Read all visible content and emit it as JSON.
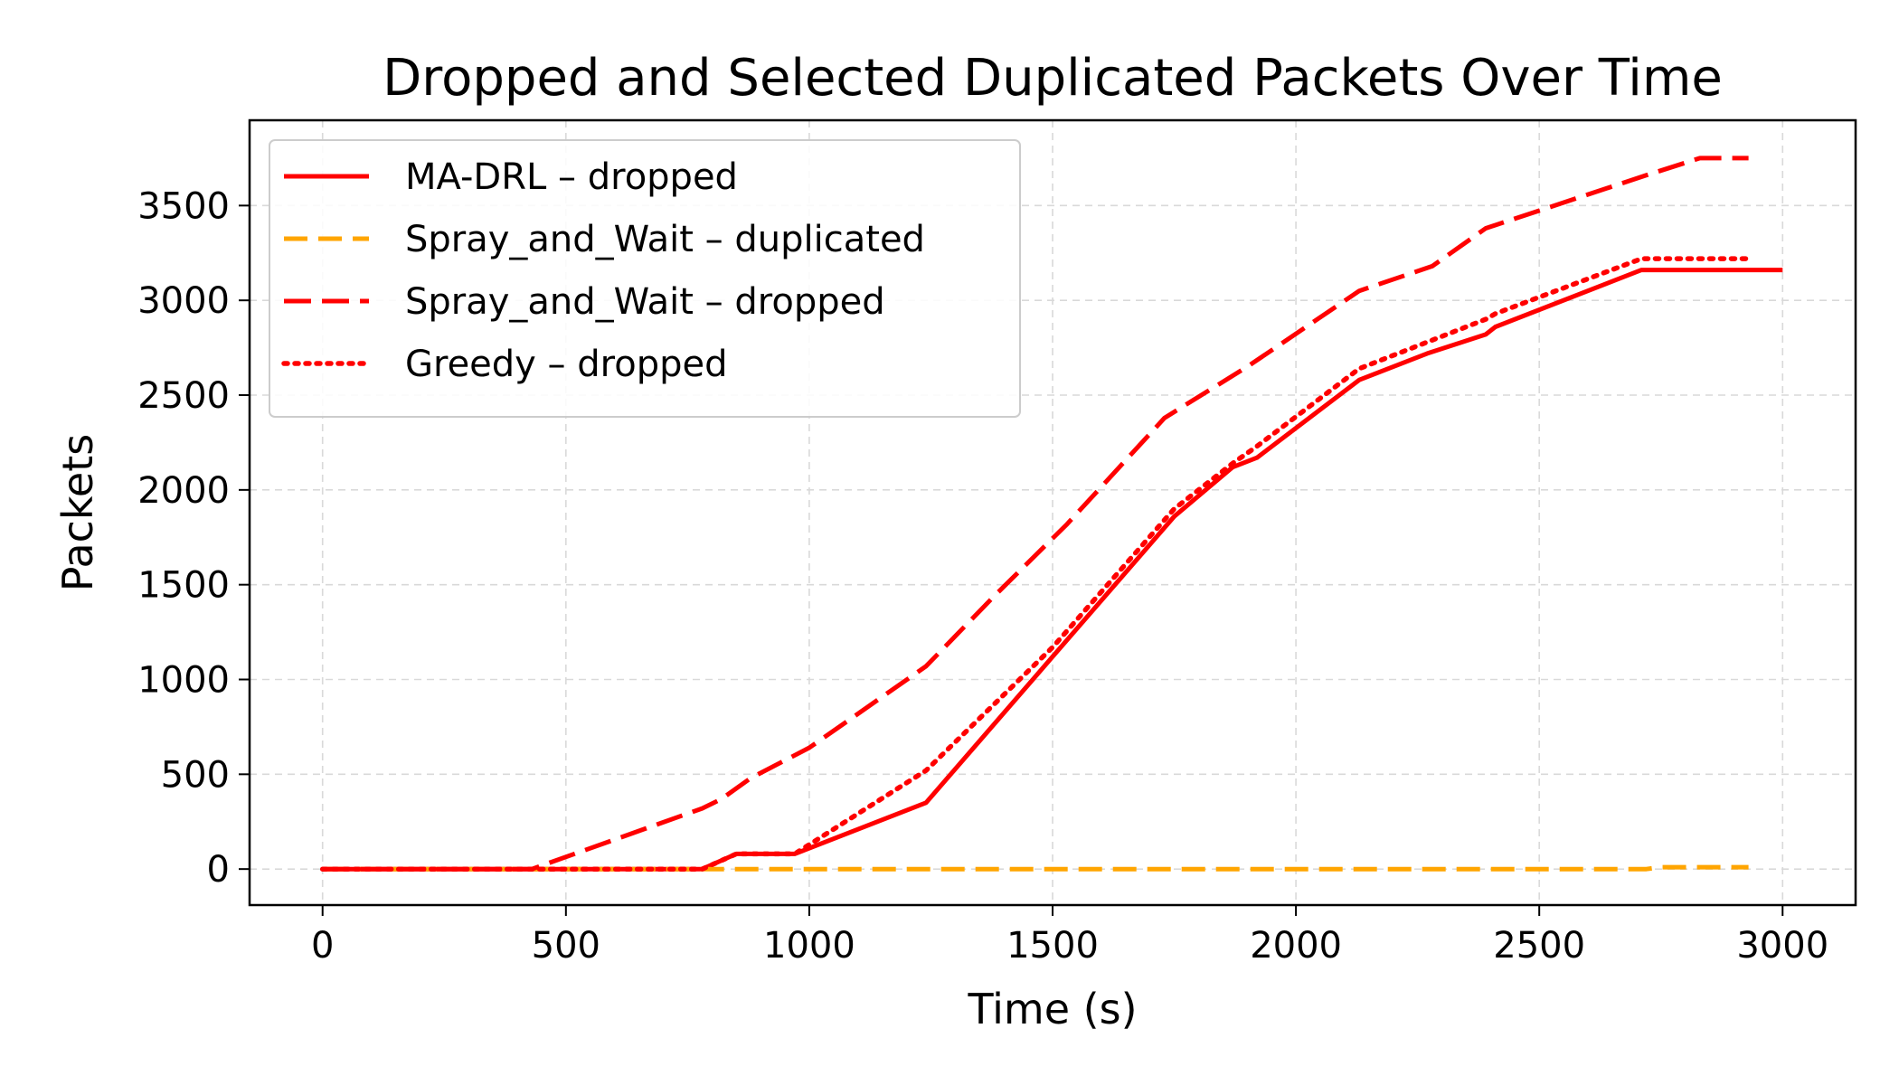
{
  "chart_data": {
    "type": "line",
    "title": "Dropped and Selected Duplicated Packets Over Time",
    "xlabel": "Time (s)",
    "ylabel": "Packets",
    "xlim": [
      -150,
      3150
    ],
    "ylim": [
      -190,
      3950
    ],
    "xticks": [
      0,
      500,
      1000,
      1500,
      2000,
      2500,
      3000
    ],
    "xtick_labels": [
      "0",
      "500",
      "1000",
      "1500",
      "2000",
      "2500",
      "3000"
    ],
    "yticks": [
      0,
      500,
      1000,
      1500,
      2000,
      2500,
      3000,
      3500
    ],
    "ytick_labels": [
      "0",
      "500",
      "1000",
      "1500",
      "2000",
      "2500",
      "3000",
      "3500"
    ],
    "grid": true,
    "legend_position": "top-left",
    "series": [
      {
        "name": "MA-DRL – dropped",
        "color": "#ff0000",
        "style": "solid",
        "x": [
          0,
          780,
          850,
          970,
          1240,
          1500,
          1750,
          1870,
          1920,
          2130,
          2270,
          2390,
          2410,
          2710,
          3000
        ],
        "y": [
          0,
          0,
          80,
          80,
          350,
          1120,
          1860,
          2120,
          2170,
          2580,
          2720,
          2820,
          2860,
          3160,
          3160
        ]
      },
      {
        "name": "Spray_and_Wait – duplicated",
        "color": "#ffa500",
        "style": "dashed",
        "x": [
          0,
          2720,
          2750,
          2930
        ],
        "y": [
          0,
          0,
          10,
          10
        ]
      },
      {
        "name": "Spray_and_Wait – dropped",
        "color": "#ff0000",
        "style": "longdash",
        "x": [
          0,
          430,
          780,
          820,
          880,
          1000,
          1240,
          1380,
          1530,
          1730,
          1900,
          2130,
          2280,
          2390,
          2720,
          2830,
          2930
        ],
        "y": [
          0,
          0,
          320,
          370,
          480,
          640,
          1070,
          1440,
          1820,
          2380,
          2650,
          3050,
          3180,
          3380,
          3660,
          3750,
          3750
        ]
      },
      {
        "name": "Greedy – dropped",
        "color": "#ff0000",
        "style": "dotted",
        "x": [
          0,
          780,
          850,
          970,
          1240,
          1500,
          1750,
          1870,
          1920,
          2130,
          2270,
          2390,
          2410,
          2710,
          2930
        ],
        "y": [
          0,
          0,
          80,
          80,
          520,
          1170,
          1900,
          2140,
          2230,
          2640,
          2780,
          2900,
          2930,
          3220,
          3220
        ]
      }
    ]
  }
}
